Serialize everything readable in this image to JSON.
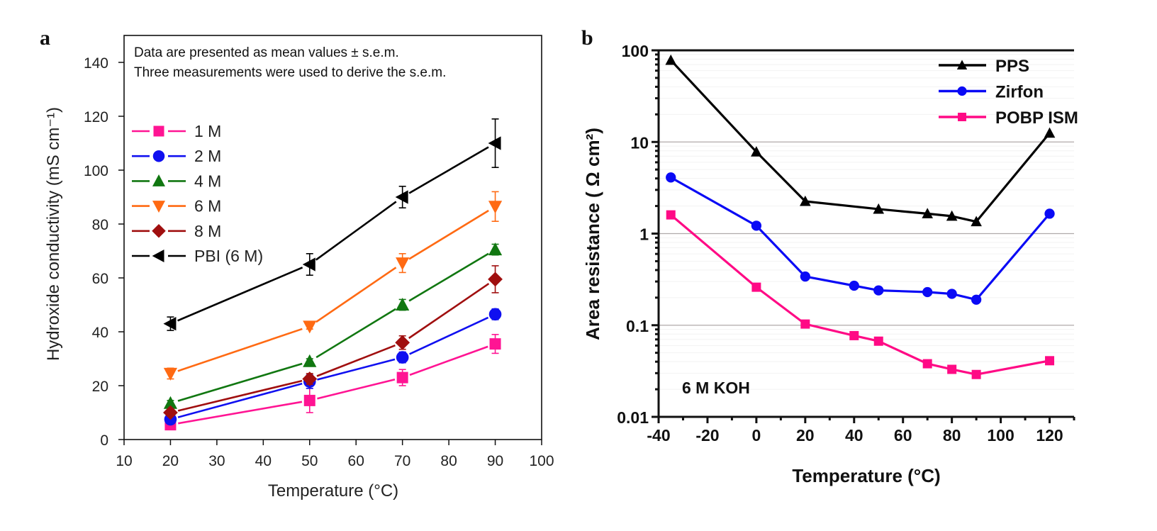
{
  "panels": {
    "a": "a",
    "b": "b"
  },
  "chart_data": [
    {
      "id": "a",
      "type": "line",
      "title": "",
      "annotation_lines": [
        "Data are presented as mean values ± s.e.m.",
        "Three measurements were used to derive the s.e.m."
      ],
      "xlabel": "Temperature (°C)",
      "ylabel": "Hydroxide conductivity (mS cm⁻¹)",
      "xlim": [
        10,
        100
      ],
      "ylim": [
        0,
        150
      ],
      "xticks": [
        10,
        20,
        30,
        40,
        50,
        60,
        70,
        80,
        90,
        100
      ],
      "yticks": [
        0,
        20,
        40,
        60,
        80,
        100,
        120,
        140
      ],
      "legend_position": "upper-left",
      "x": [
        20,
        50,
        70,
        90
      ],
      "series": [
        {
          "name": "1 M",
          "color": "#ff1493",
          "marker": "square",
          "values": [
            5.5,
            14.5,
            23,
            35.5
          ],
          "errors": [
            1,
            4.5,
            3,
            3.5
          ]
        },
        {
          "name": "2 M",
          "color": "#1010f0",
          "marker": "circle",
          "values": [
            7.5,
            21.5,
            30.5,
            46.5
          ],
          "errors": [
            1,
            2.5,
            2,
            2
          ]
        },
        {
          "name": "4 M",
          "color": "#117711",
          "marker": "triangle-up",
          "values": [
            13.5,
            29,
            50,
            70.5
          ],
          "errors": [
            1,
            1,
            2,
            2
          ]
        },
        {
          "name": "6 M",
          "color": "#ff6a13",
          "marker": "triangle-down",
          "values": [
            24.5,
            42,
            65.5,
            86.5
          ],
          "errors": [
            2,
            1,
            3.5,
            5.5
          ]
        },
        {
          "name": "8 M",
          "color": "#a00f0f",
          "marker": "diamond",
          "values": [
            10,
            22.5,
            36,
            59.5
          ],
          "errors": [
            1,
            2,
            2.5,
            5
          ]
        },
        {
          "name": "PBI (6 M)",
          "color": "#000000",
          "marker": "triangle-left",
          "values": [
            43,
            65,
            90,
            110
          ],
          "errors": [
            2.5,
            4,
            4,
            9
          ]
        }
      ]
    },
    {
      "id": "b",
      "type": "line",
      "title": "",
      "annotation": "6 M KOH",
      "xlabel": "Temperature (°C)",
      "ylabel": "Area resistance ( Ω cm²)",
      "yscale": "log",
      "xlim": [
        -40,
        130
      ],
      "ylim": [
        0.01,
        100
      ],
      "xticks": [
        -40,
        -20,
        0,
        20,
        40,
        60,
        80,
        100,
        120
      ],
      "yticks": [
        0.01,
        0.1,
        1,
        10,
        100
      ],
      "ytick_labels": [
        "0.01",
        "0.1",
        "1",
        "10",
        "100"
      ],
      "grid": "horizontal",
      "legend_position": "top-right",
      "x": [
        -35,
        0,
        20,
        40,
        50,
        70,
        80,
        90,
        120
      ],
      "series": [
        {
          "name": "PPS",
          "color": "#000000",
          "marker": "triangle-up",
          "x": [
            -35,
            0,
            20,
            50,
            70,
            80,
            90,
            120
          ],
          "values": [
            78,
            7.8,
            2.25,
            1.85,
            1.65,
            1.55,
            1.35,
            12.5
          ]
        },
        {
          "name": "Zirfon",
          "color": "#0a0af5",
          "marker": "circle",
          "x": [
            -35,
            0,
            20,
            40,
            50,
            70,
            80,
            90,
            120
          ],
          "values": [
            4.1,
            1.22,
            0.34,
            0.27,
            0.24,
            0.23,
            0.22,
            0.19,
            1.65
          ]
        },
        {
          "name": "POBP ISM",
          "color": "#ff0a85",
          "marker": "square",
          "x": [
            -35,
            0,
            20,
            40,
            50,
            70,
            80,
            90,
            120
          ],
          "values": [
            1.6,
            0.26,
            0.103,
            0.077,
            0.067,
            0.038,
            0.033,
            0.029,
            0.041
          ]
        }
      ]
    }
  ]
}
